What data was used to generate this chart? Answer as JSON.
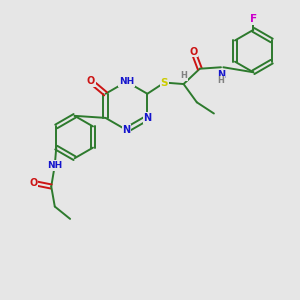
{
  "background_color": "#e6e6e6",
  "atom_colors": {
    "C": "#2d7a2d",
    "N": "#1414cc",
    "O": "#cc1414",
    "S": "#cccc00",
    "F": "#cc00cc",
    "H": "#808080"
  },
  "bond_color": "#2d7a2d",
  "bond_lw": 1.4,
  "figsize": [
    3.0,
    3.0
  ],
  "dpi": 100,
  "xlim": [
    0,
    10
  ],
  "ylim": [
    0,
    10
  ]
}
